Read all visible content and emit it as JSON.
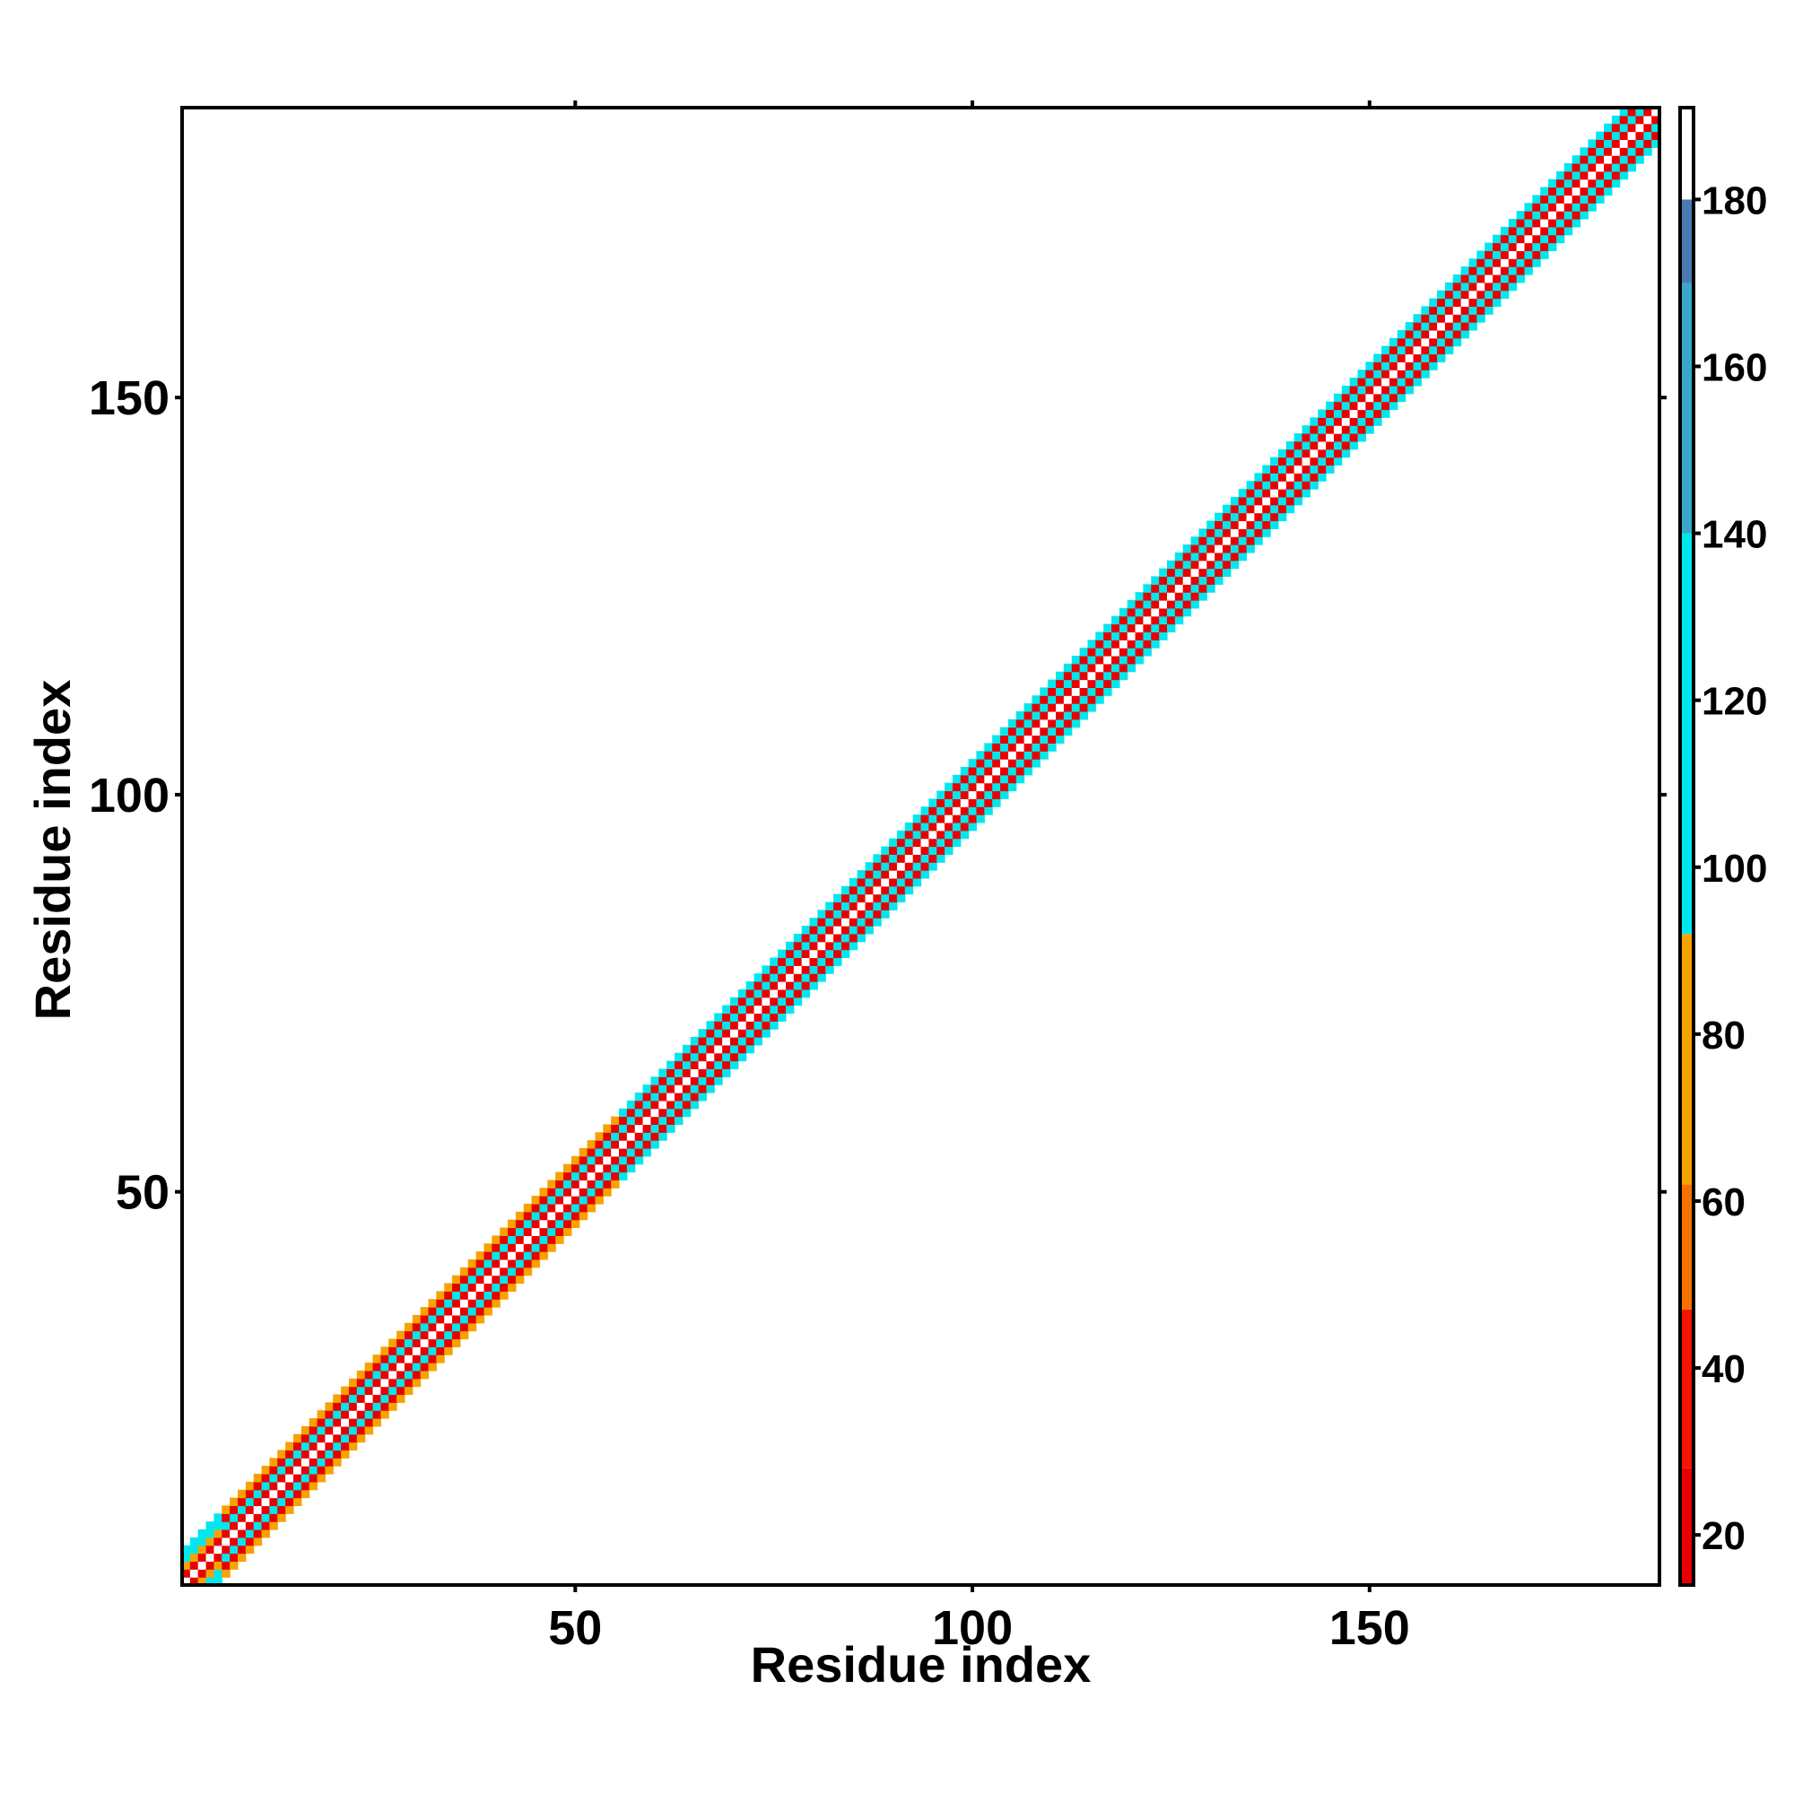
{
  "chart_data": {
    "type": "heatmap",
    "title": "",
    "xlabel": "Residue index",
    "ylabel": "Residue index",
    "xlim": [
      1,
      186
    ],
    "ylim": [
      1,
      186
    ],
    "x_ticks": [
      50,
      100,
      150
    ],
    "y_ticks": [
      50,
      100,
      150
    ],
    "grid": false,
    "description_of_values": "contact/distance map restricted to a band along the diagonal (|i-j| ≤ 4); values by offset from diagonal",
    "diagonal_band": {
      "max_offset": 4,
      "offset_values": [
        {
          "offset": 0,
          "value": 190
        },
        {
          "offset": 1,
          "value": 20
        },
        {
          "offset": 2,
          "value": 110
        },
        {
          "offset": 3,
          "value": 25
        },
        {
          "offset": 4,
          "value": 100
        }
      ],
      "segments": [
        {
          "residue_range": [
            1,
            5
          ],
          "offset_values": [
            190,
            20,
            65,
            110,
            100
          ]
        },
        {
          "residue_range": [
            6,
            55
          ],
          "offset_values": [
            190,
            20,
            110,
            25,
            65
          ]
        },
        {
          "residue_range": [
            56,
            186
          ],
          "offset_values": [
            190,
            20,
            110,
            25,
            100
          ]
        }
      ]
    },
    "colorbar": {
      "range": [
        14,
        191
      ],
      "ticks": [
        20,
        40,
        60,
        80,
        100,
        120,
        140,
        160,
        180
      ],
      "stops": [
        {
          "min": 14,
          "max": 28,
          "color": "#e80000"
        },
        {
          "min": 28,
          "max": 47,
          "color": "#f21500"
        },
        {
          "min": 47,
          "max": 62,
          "color": "#f57200"
        },
        {
          "min": 62,
          "max": 92,
          "color": "#f5a300"
        },
        {
          "min": 92,
          "max": 140,
          "color": "#00e8ee"
        },
        {
          "min": 140,
          "max": 170,
          "color": "#3aa6c8"
        },
        {
          "min": 170,
          "max": 180,
          "color": "#4a7ab0"
        },
        {
          "min": 180,
          "max": 191,
          "color": "#ffffff"
        }
      ]
    }
  }
}
